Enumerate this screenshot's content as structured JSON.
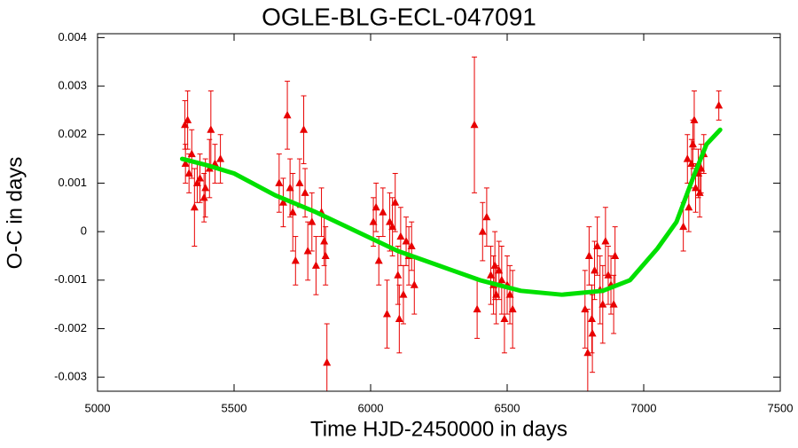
{
  "chart_data": {
    "type": "scatter",
    "title": "OGLE-BLG-ECL-047091",
    "x_label": "Time HJD-2450000 in days",
    "y_label": "O-C in days",
    "xlim": [
      5000,
      7500
    ],
    "ylim": [
      -0.00329,
      0.00408
    ],
    "xticks": [
      5000,
      5500,
      6000,
      6500,
      7000,
      7500
    ],
    "yticks": [
      -0.003,
      -0.002,
      -0.001,
      0,
      0.001,
      0.002,
      0.003,
      0.004
    ],
    "series": [
      {
        "color": "#e80000",
        "x": [
          5320,
          5330,
          5335,
          5345,
          5355,
          5365,
          5375,
          5390,
          5395,
          5410,
          5415,
          5430,
          5450,
          5322,
          5665,
          5680,
          5695,
          5705,
          5715,
          5725,
          5740,
          5755,
          5760,
          5770,
          5785,
          5800,
          5820,
          5835,
          5840,
          5830,
          6010,
          6020,
          6030,
          6045,
          6060,
          6070,
          6080,
          6090,
          6100,
          6110,
          6120,
          6130,
          6140,
          6150,
          6160,
          6105,
          6380,
          6390,
          6410,
          6425,
          6440,
          6450,
          6460,
          6470,
          6480,
          6490,
          6500,
          6510,
          6520,
          6455,
          6785,
          6795,
          6800,
          6810,
          6820,
          6830,
          6840,
          6850,
          6860,
          6870,
          6880,
          6890,
          6895,
          6812,
          7145,
          7160,
          7165,
          7175,
          7185,
          7190,
          7200,
          7205,
          7210,
          7220,
          7275,
          7180
        ],
        "values": [
          0.0022,
          0.0023,
          0.0012,
          0.0016,
          0.0005,
          0.001,
          0.0011,
          0.0007,
          0.0009,
          0.0013,
          0.0021,
          0.0014,
          0.0015,
          0.0014,
          0.001,
          0.0006,
          0.0024,
          0.0009,
          0.0004,
          -0.0006,
          0.001,
          0.0021,
          0.0008,
          -0.0004,
          0.0002,
          -0.0007,
          0.0004,
          -0.0005,
          -0.0027,
          -0.0002,
          0.0002,
          0.0005,
          -0.0006,
          0.0004,
          -0.0017,
          0.0002,
          0.0001,
          0.0006,
          -0.0009,
          -0.0001,
          -0.0013,
          -0.0002,
          -0.0005,
          -0.0003,
          -0.0011,
          -0.0018,
          0.0022,
          -0.0016,
          0,
          0.0003,
          -0.0009,
          -0.0011,
          -0.0013,
          -0.0008,
          -0.001,
          -0.0018,
          -0.0011,
          -0.0013,
          -0.0016,
          -0.0007,
          -0.0016,
          -0.0025,
          -0.0005,
          -0.0018,
          -0.0008,
          -0.0003,
          -0.0012,
          -0.0015,
          -0.0002,
          -0.0009,
          -0.0011,
          -0.0015,
          -0.0005,
          -0.0021,
          0.0001,
          0.0015,
          0.0005,
          0.0014,
          0.0023,
          0.0009,
          0.0012,
          0.0008,
          0.0013,
          0.0016,
          0.0026,
          0.0018
        ],
        "errors": [
          0.0005,
          0.0006,
          0.0004,
          0.0005,
          0.0008,
          0.0004,
          0.0005,
          0.0005,
          0.0006,
          0.0006,
          0.0008,
          0.0004,
          0.0005,
          0.0004,
          0.0006,
          0.0005,
          0.0007,
          0.0006,
          0.0008,
          0.0005,
          0.0005,
          0.0007,
          0.0005,
          0.0006,
          0.0006,
          0.0006,
          0.0005,
          0.0006,
          0.0008,
          0.0005,
          0.0005,
          0.0005,
          0.0005,
          0.0005,
          0.0007,
          0.0006,
          0.0006,
          0.0006,
          0.0006,
          0.0006,
          0.0006,
          0.0005,
          0.0006,
          0.0005,
          0.0006,
          0.0007,
          0.0014,
          0.0006,
          0.0006,
          0.0006,
          0.0006,
          0.0006,
          0.0006,
          0.0006,
          0.0007,
          0.0007,
          0.0006,
          0.0006,
          0.0008,
          0.0007,
          0.0008,
          0.0009,
          0.0006,
          0.0007,
          0.0006,
          0.0006,
          0.0007,
          0.0008,
          0.0007,
          0.0006,
          0.0006,
          0.0006,
          0.0006,
          0.0008,
          0.0005,
          0.0005,
          0.0005,
          0.0005,
          0.0006,
          0.0005,
          0.0005,
          0.0005,
          0.0005,
          0.0004,
          0.0003,
          0.0005
        ]
      },
      {
        "type": "line",
        "color": "#00e000",
        "x": [
          5310,
          5400,
          5500,
          5650,
          5800,
          5950,
          6100,
          6250,
          6400,
          6550,
          6700,
          6850,
          6950,
          7050,
          7120,
          7180,
          7230,
          7280
        ],
        "values": [
          0.0015,
          0.00137,
          0.0012,
          0.00075,
          0.0004,
          0,
          -0.0004,
          -0.0007,
          -0.001,
          -0.00122,
          -0.0013,
          -0.00122,
          -0.001,
          -0.00035,
          0.0002,
          0.0011,
          0.0018,
          0.0021
        ]
      }
    ]
  }
}
